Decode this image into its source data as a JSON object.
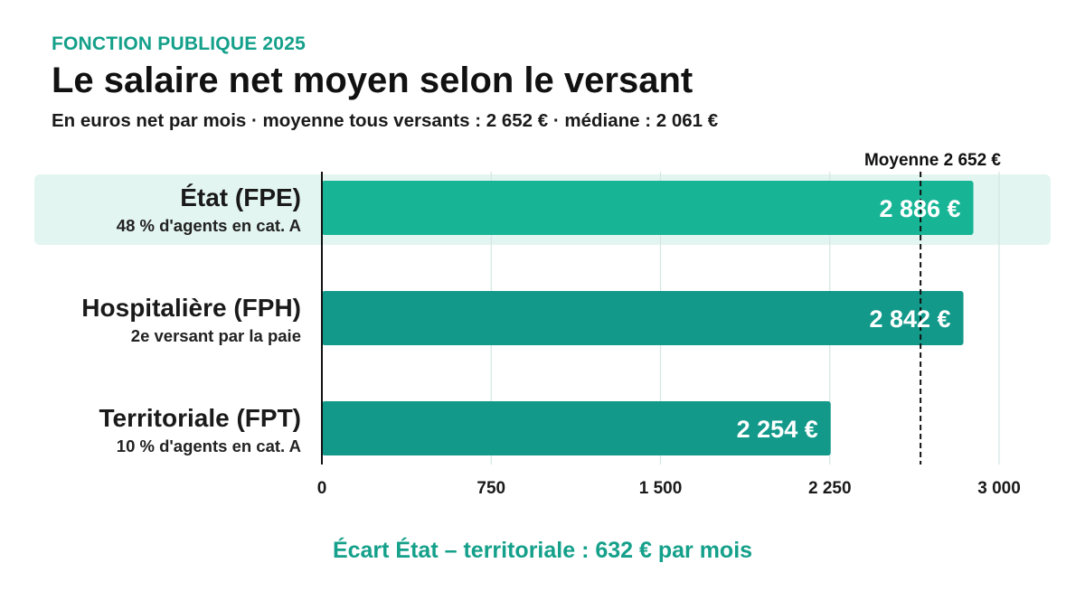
{
  "header": {
    "kicker": "FONCTION PUBLIQUE 2025",
    "title": "Le salaire net moyen selon le versant",
    "subtitle": "En euros net par mois · moyenne tous versants : 2 652 € · médiane : 2 061 €"
  },
  "chart_data": {
    "type": "bar",
    "orientation": "horizontal",
    "categories": [
      "État (FPE)",
      "Hospitalière (FPH)",
      "Territoriale (FPT)"
    ],
    "category_notes": [
      "48 % d'agents en cat. A",
      "2e versant par la paie",
      "10 % d'agents en cat. A"
    ],
    "values": [
      2886,
      2842,
      2254
    ],
    "value_labels": [
      "2 886 €",
      "2 842 €",
      "2 254 €"
    ],
    "highlighted_category": "État (FPE)",
    "xlim": [
      0,
      3000
    ],
    "xticks": [
      0,
      750,
      1500,
      2250,
      3000
    ],
    "xtick_labels": [
      "0",
      "750",
      "1 500",
      "2 250",
      "3 000"
    ],
    "grid": true,
    "reference_line": {
      "value": 2652,
      "label": "Moyenne 2 652 €"
    },
    "colors": {
      "bar_highlight": "#17b596",
      "bar": "#12998a",
      "highlight_band": "#e3f5f0",
      "grid": "#d3e6e3",
      "axis": "#111111"
    }
  },
  "footer": {
    "note": "Écart État – territoriale : 632 € par mois"
  }
}
